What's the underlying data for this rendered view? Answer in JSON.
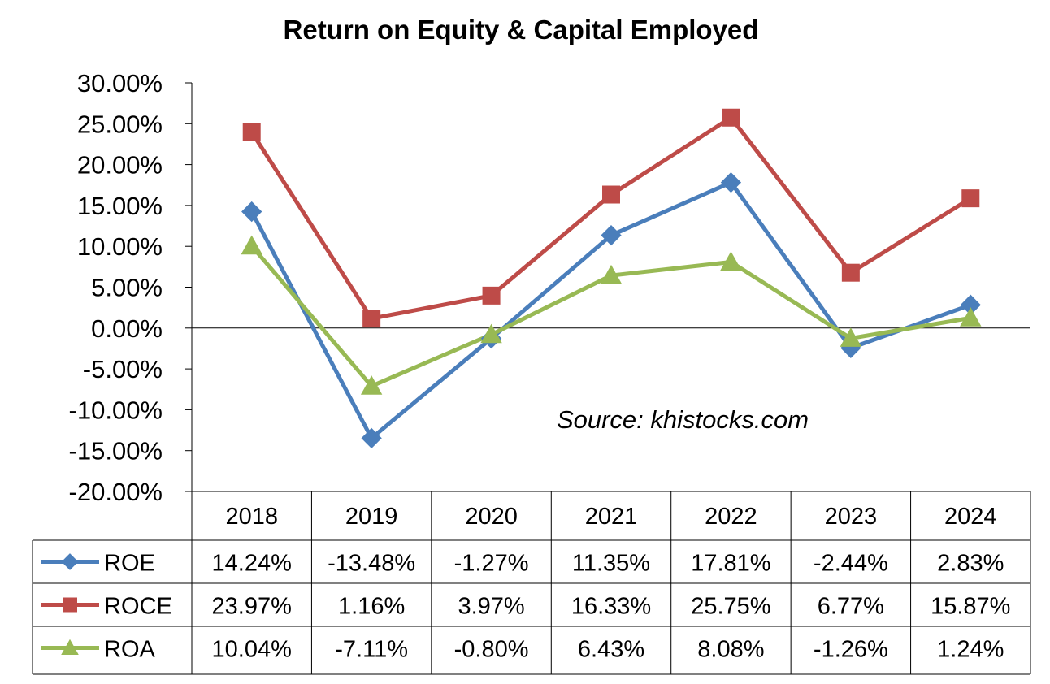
{
  "chart_data": {
    "type": "line",
    "title": "Return on Equity & Capital Employed",
    "annotation": "Source: khistocks.com",
    "categories": [
      "2018",
      "2019",
      "2020",
      "2021",
      "2022",
      "2023",
      "2024"
    ],
    "ylim": [
      -0.2,
      0.3
    ],
    "yticks": [
      "30.00%",
      "25.00%",
      "20.00%",
      "15.00%",
      "10.00%",
      "5.00%",
      "0.00%",
      "-5.00%",
      "-10.00%",
      "-15.00%",
      "-20.00%"
    ],
    "grid": false,
    "legend": "data-table",
    "series": [
      {
        "name": "ROE",
        "color": "#4a7ebb",
        "marker": "diamond",
        "values": [
          0.1424,
          -0.1348,
          -0.0127,
          0.1135,
          0.1781,
          -0.0244,
          0.0283
        ],
        "labels": [
          "14.24%",
          "-13.48%",
          "-1.27%",
          "11.35%",
          "17.81%",
          "-2.44%",
          "2.83%"
        ]
      },
      {
        "name": "ROCE",
        "color": "#be4b48",
        "marker": "square",
        "values": [
          0.2397,
          0.0116,
          0.0397,
          0.1633,
          0.2575,
          0.0677,
          0.1587
        ],
        "labels": [
          "23.97%",
          "1.16%",
          "3.97%",
          "16.33%",
          "25.75%",
          "6.77%",
          "15.87%"
        ]
      },
      {
        "name": "ROA",
        "color": "#98b954",
        "marker": "triangle",
        "values": [
          0.1004,
          -0.0711,
          -0.008,
          0.0643,
          0.0808,
          -0.0126,
          0.0124
        ],
        "labels": [
          "10.04%",
          "-7.11%",
          "-0.80%",
          "6.43%",
          "8.08%",
          "-1.26%",
          "1.24%"
        ]
      }
    ]
  }
}
